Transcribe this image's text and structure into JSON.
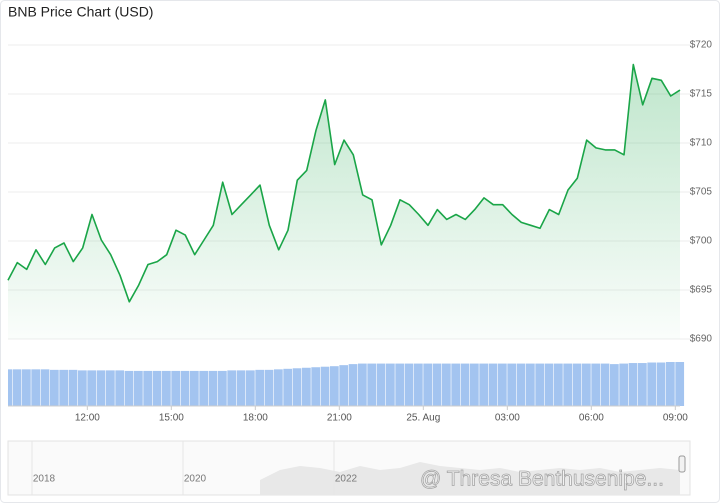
{
  "chart_data": [
    {
      "type": "line",
      "title": "BNB Price Chart (USD)",
      "color": "#1aa548",
      "area": true,
      "grid": true,
      "x": [
        "09:10",
        "09:30",
        "09:50",
        "10:10",
        "10:30",
        "10:50",
        "11:10",
        "11:30",
        "11:50",
        "12:10",
        "12:30",
        "12:50",
        "13:10",
        "13:30",
        "13:50",
        "14:10",
        "14:30",
        "14:50",
        "15:10",
        "15:30",
        "15:50",
        "16:10",
        "16:30",
        "16:50",
        "17:10",
        "17:30",
        "17:50",
        "18:10",
        "18:30",
        "18:50",
        "19:10",
        "19:30",
        "19:50",
        "20:10",
        "20:30",
        "20:50",
        "21:10",
        "21:30",
        "21:50",
        "22:10",
        "22:30",
        "22:50",
        "23:10",
        "23:30",
        "23:50",
        "00:10",
        "00:30",
        "00:50",
        "01:10",
        "01:30",
        "01:50",
        "02:10",
        "02:30",
        "02:50",
        "03:10",
        "03:30",
        "03:50",
        "04:10",
        "04:30",
        "04:50",
        "05:10",
        "05:30",
        "05:50",
        "06:10",
        "06:30",
        "06:50",
        "07:10",
        "07:30",
        "07:50",
        "08:10",
        "08:30",
        "08:50",
        "09:10"
      ],
      "values": [
        696.0,
        697.8,
        697.1,
        699.1,
        697.6,
        699.3,
        699.8,
        697.9,
        699.3,
        702.7,
        700.1,
        698.6,
        696.5,
        693.8,
        695.5,
        697.6,
        697.9,
        698.6,
        701.1,
        700.6,
        698.6,
        700.1,
        701.6,
        706.0,
        702.7,
        703.7,
        704.7,
        705.7,
        701.6,
        699.1,
        701.1,
        706.2,
        707.2,
        711.3,
        714.4,
        707.8,
        710.3,
        708.8,
        704.7,
        704.2,
        699.6,
        701.6,
        704.2,
        703.7,
        702.7,
        701.6,
        703.2,
        702.2,
        702.7,
        702.2,
        703.2,
        704.4,
        703.7,
        703.7,
        702.7,
        701.9,
        701.6,
        701.3,
        703.2,
        702.7,
        705.2,
        706.4,
        710.3,
        709.5,
        709.3,
        709.3,
        708.8,
        718.0,
        713.9,
        716.6,
        716.4,
        714.8,
        715.4
      ],
      "ylim": [
        690,
        720
      ],
      "yticks": [
        {
          "value": 690,
          "label": "$690"
        },
        {
          "value": 695,
          "label": "$695"
        },
        {
          "value": 700,
          "label": "$700"
        },
        {
          "value": 705,
          "label": "$705"
        },
        {
          "value": 710,
          "label": "$710"
        },
        {
          "value": 715,
          "label": "$715"
        },
        {
          "value": 720,
          "label": "$720"
        }
      ],
      "xticks": [
        {
          "value": "12:00",
          "label": "12:00"
        },
        {
          "value": "15:00",
          "label": "15:00"
        },
        {
          "value": "18:00",
          "label": "18:00"
        },
        {
          "value": "21:00",
          "label": "21:00"
        },
        {
          "value": "00:00",
          "label": "25. Aug"
        },
        {
          "value": "03:00",
          "label": "03:00"
        },
        {
          "value": "06:00",
          "label": "06:00"
        },
        {
          "value": "09:00",
          "label": "09:00"
        }
      ]
    },
    {
      "type": "bar",
      "color": "#a3c4f0",
      "values": [
        35,
        35,
        35,
        35,
        35,
        34.5,
        34.5,
        34.5,
        34,
        34,
        34,
        34,
        34,
        33.5,
        33.5,
        33.5,
        33.5,
        33.5,
        33.5,
        33.5,
        33.5,
        33.5,
        33.5,
        33.5,
        34,
        34,
        34,
        34.5,
        34.5,
        35,
        35.5,
        36,
        36.5,
        37,
        37.5,
        38,
        39,
        40,
        40.5,
        40.5,
        40.5,
        40.5,
        40.5,
        40.5,
        40.5,
        40.5,
        40.5,
        40.5,
        40.5,
        40.5,
        40.5,
        40.5,
        40.5,
        40.5,
        40.5,
        40.5,
        40.5,
        40.5,
        40.5,
        40.5,
        40.5,
        40.5,
        40.5,
        40.5,
        40.5,
        40,
        40.5,
        41,
        41,
        41.5,
        41.5,
        42,
        42
      ],
      "ylim": [
        0,
        42
      ]
    },
    {
      "type": "navigator",
      "xticks": [
        "2018",
        "2020",
        "2022"
      ],
      "watermark": "@ Thresa Benthusenipe..."
    }
  ]
}
